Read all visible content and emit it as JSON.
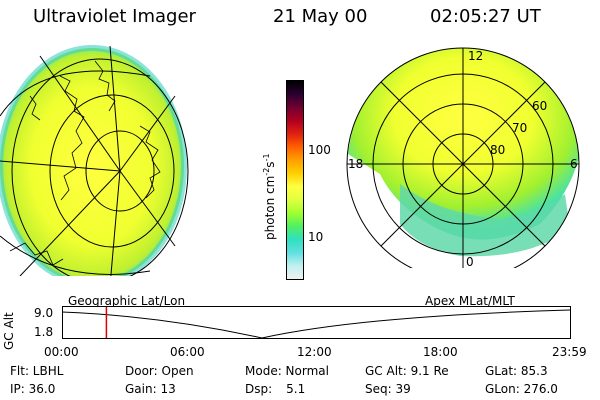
{
  "header": {
    "instrument": "Ultraviolet Imager",
    "date": "21 May 00",
    "time": "02:05:27 UT"
  },
  "colorbar": {
    "unit_label": "photon cm",
    "unit_sup1": "-2",
    "unit_mid": "s",
    "unit_sup2": "-1",
    "tick_high": "100",
    "tick_low": "10",
    "colors": [
      "#000000",
      "#2a0030",
      "#700030",
      "#b00020",
      "#e02010",
      "#ff6000",
      "#ffa000",
      "#ffd000",
      "#ffff40",
      "#e0ff40",
      "#a0ff30",
      "#50f060",
      "#30e0c0",
      "#60e0e0",
      "#c0f0f0",
      "#f0f0f0"
    ]
  },
  "polar_plot": {
    "mlt_labels": {
      "top": "12",
      "right": "6",
      "bottom": "0",
      "left": "18"
    },
    "lat_labels": [
      "60",
      "70",
      "80"
    ]
  },
  "timeline": {
    "y_axis_label": "GC Alt",
    "ytick_top": "9.0",
    "ytick_bottom": "1.8",
    "left_caption": "Geographic Lat/Lon",
    "right_caption": "Apex MLat/MLT",
    "x_ticks": [
      "00:00",
      "06:00",
      "12:00",
      "18:00",
      "23:59"
    ],
    "cursor_fraction": 0.0875
  },
  "status": {
    "filter": "Flt: LBHL",
    "ip": "IP: 36.0",
    "door": "Door: Open",
    "gain": "Gain: 13",
    "mode": "Mode: Normal",
    "dsp_label": "Dsp:",
    "dsp_value": "5.1",
    "gc_alt": "GC Alt: 9.1 Re",
    "seq": "Seq: 39",
    "glat": "GLat: 85.3",
    "glon": "GLon: 276.0"
  }
}
